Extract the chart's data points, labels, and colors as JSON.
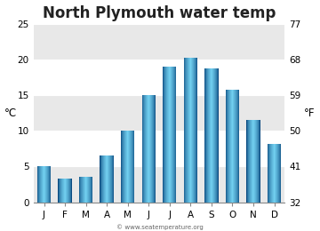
{
  "title": "North Plymouth water temp",
  "months": [
    "J",
    "F",
    "M",
    "A",
    "M",
    "J",
    "J",
    "A",
    "S",
    "O",
    "N",
    "D"
  ],
  "values_c": [
    5.0,
    3.3,
    3.5,
    6.5,
    10.0,
    15.0,
    19.0,
    20.2,
    18.7,
    15.8,
    11.5,
    8.2
  ],
  "ylim_c": [
    0,
    25
  ],
  "yticks_c": [
    0,
    5,
    10,
    15,
    20,
    25
  ],
  "yticks_f": [
    32,
    41,
    50,
    59,
    68,
    77
  ],
  "ylabel_left": "°C",
  "ylabel_right": "°F",
  "bar_color_light": "#72d0f0",
  "bar_color_dark": "#0a4a80",
  "bg_color": "#ffffff",
  "plot_bg_color": "#ffffff",
  "band_color": "#e8e8e8",
  "watermark": "© www.seatemperature.org",
  "title_fontsize": 12,
  "tick_fontsize": 7.5,
  "label_fontsize": 8.5
}
